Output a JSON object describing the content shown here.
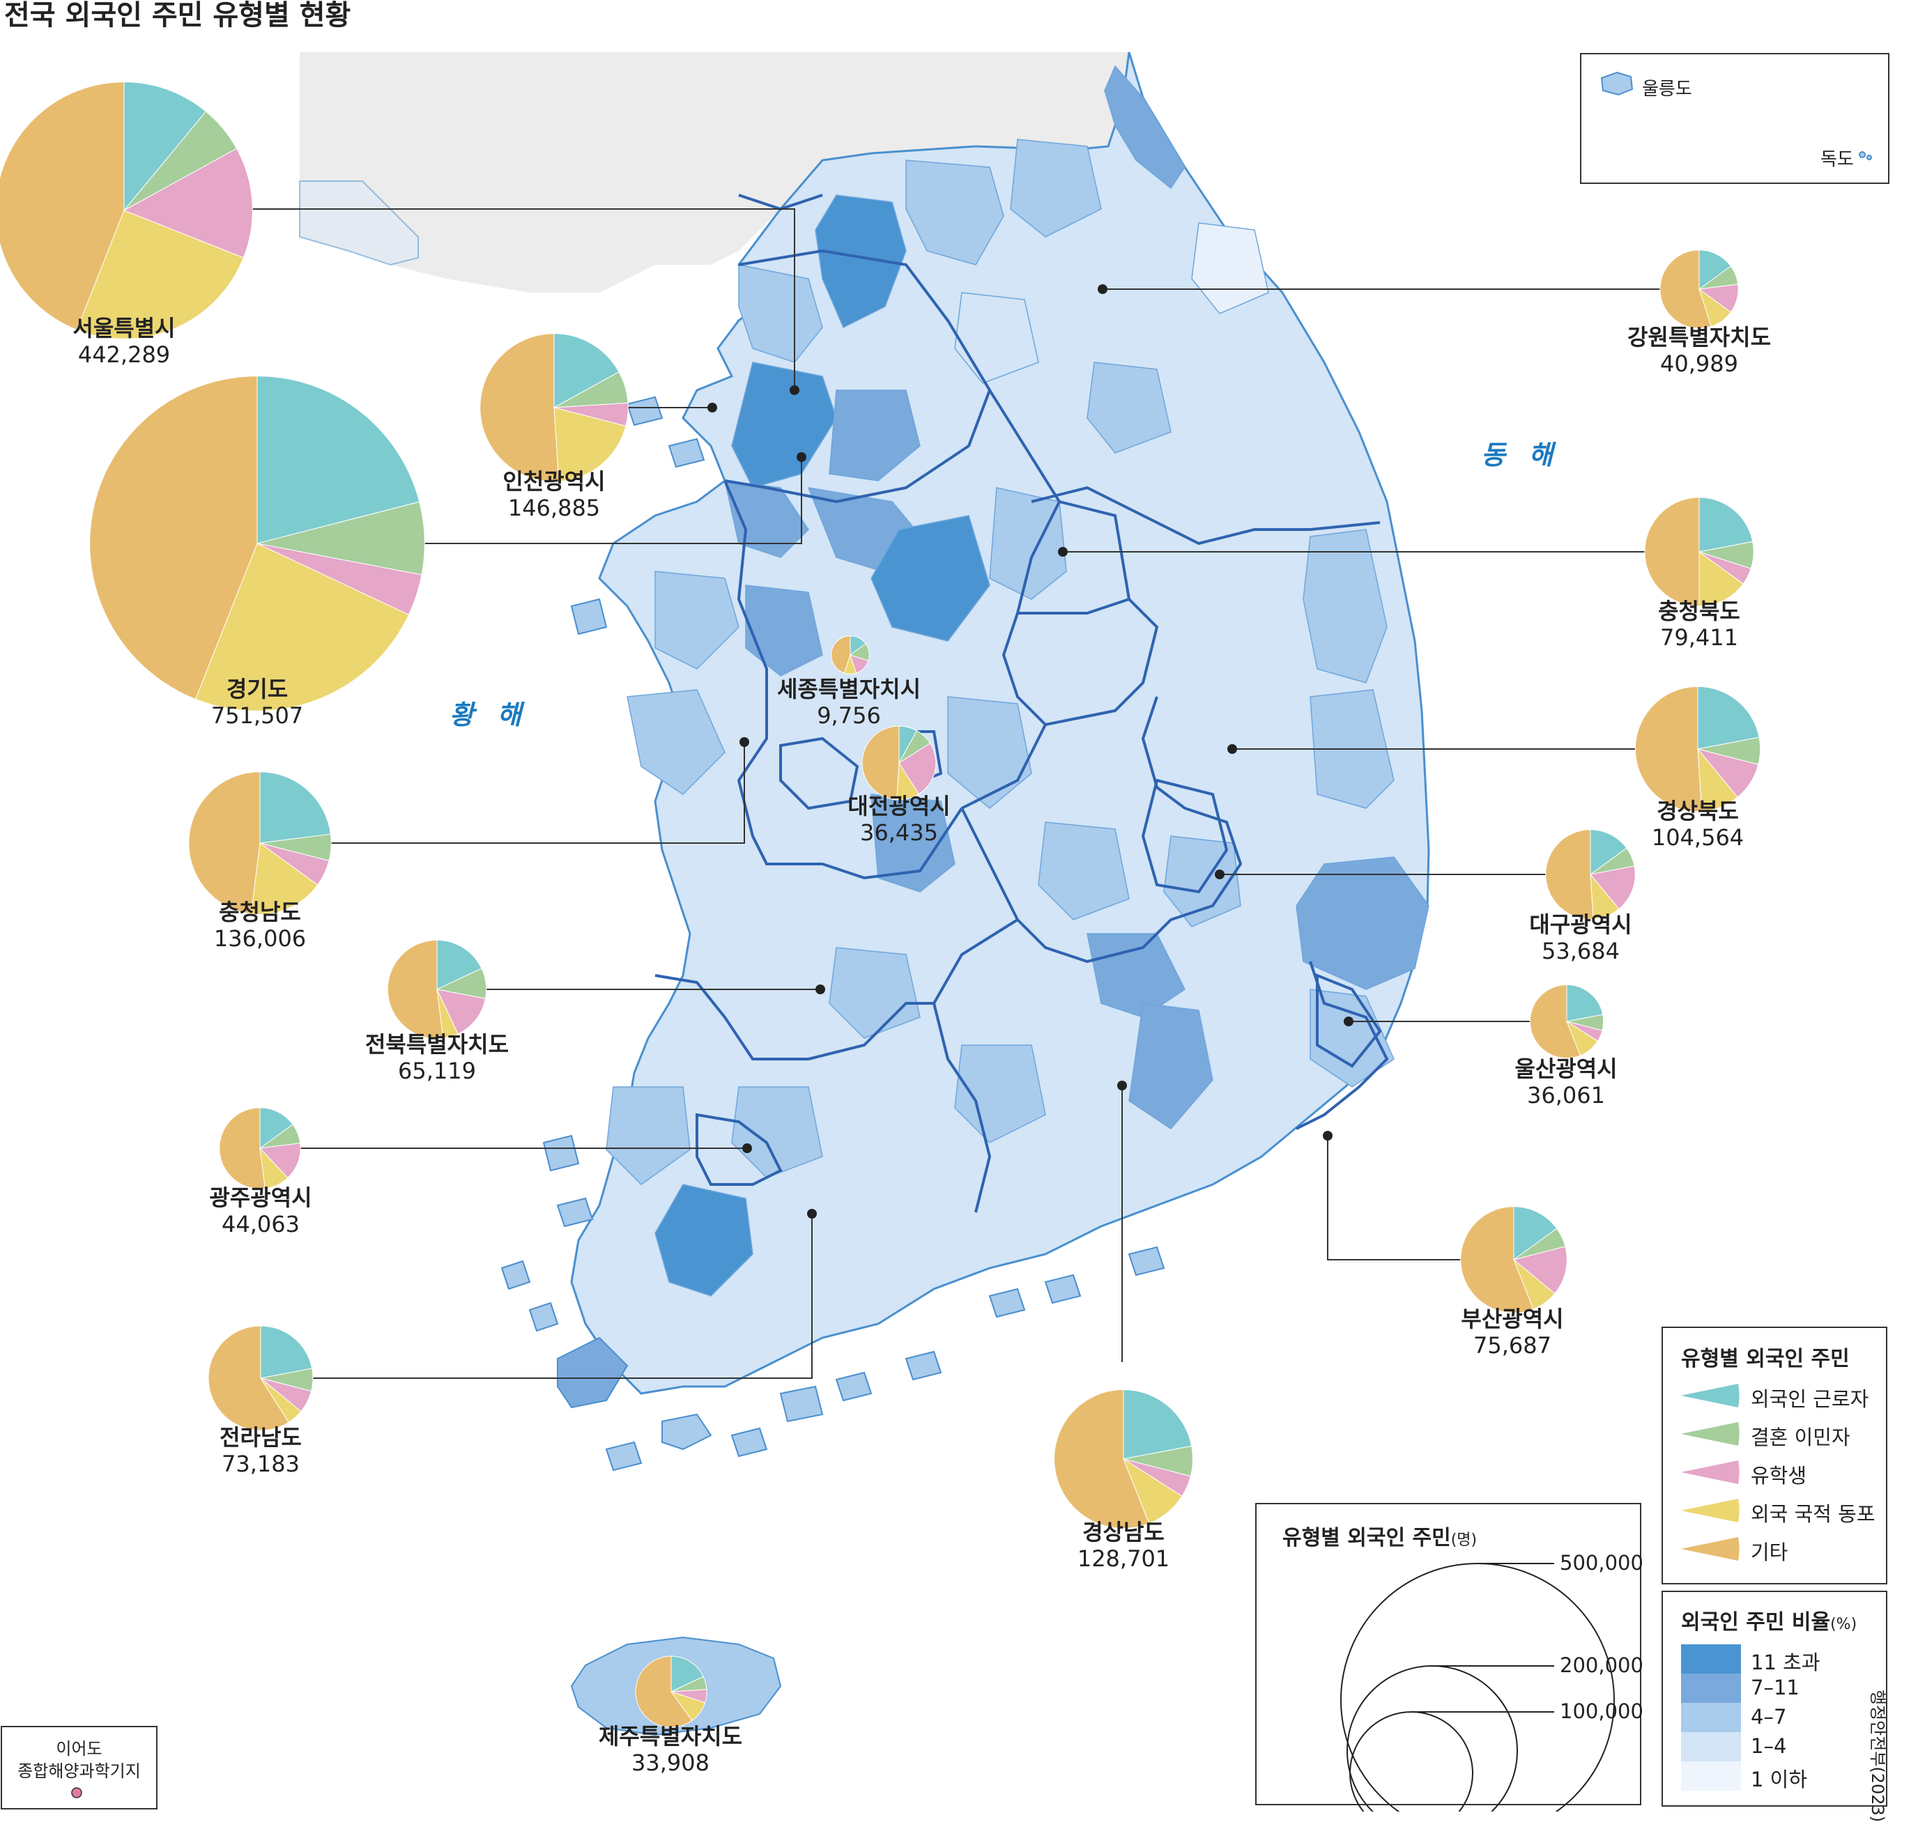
{
  "title": "전국 외국인 주민 유형별 현황",
  "seas": {
    "east": "동 해",
    "west": "황 해"
  },
  "inset": {
    "ulleung": "울릉도",
    "dokdo": "독도"
  },
  "ieodo": {
    "line1": "이어도",
    "line2": "종합해양과학기지"
  },
  "credit": "행정안전부(2023)",
  "legend_type": {
    "title": "유형별 외국인 주민",
    "items": [
      {
        "label": "외국인 근로자",
        "color": "#7ccbcf"
      },
      {
        "label": "결혼 이민자",
        "color": "#a5ce9b"
      },
      {
        "label": "유학생",
        "color": "#e5a6c8"
      },
      {
        "label": "외국 국적 동포",
        "color": "#ecd66f"
      },
      {
        "label": "기타",
        "color": "#e8bc6e"
      }
    ]
  },
  "legend_ratio": {
    "title": "외국인 주민 비율",
    "unit": "(%)",
    "items": [
      {
        "label": "11  초과",
        "color": "#4a94d2"
      },
      {
        "label": "7–11",
        "color": "#7aa9dc"
      },
      {
        "label": "4–7",
        "color": "#a9cbec"
      },
      {
        "label": "1–4",
        "color": "#d3e5f6"
      },
      {
        "label": "1  이하",
        "color": "#eef5fc"
      }
    ]
  },
  "legend_size": {
    "title": "유형별 외국인 주민",
    "unit": "(명)",
    "values": [
      {
        "label": "500,000",
        "value": 500000
      },
      {
        "label": "200,000",
        "value": 200000
      },
      {
        "label": "100,000",
        "value": 100000
      }
    ]
  },
  "regions": [
    {
      "name": "서울특별시",
      "value_label": "442,289",
      "total": 442289,
      "shares": [
        0.11,
        0.06,
        0.14,
        0.25,
        0.44
      ]
    },
    {
      "name": "인천광역시",
      "value_label": "146,885",
      "total": 146885,
      "shares": [
        0.17,
        0.07,
        0.05,
        0.2,
        0.51
      ]
    },
    {
      "name": "경기도",
      "value_label": "751,507",
      "total": 751507,
      "shares": [
        0.21,
        0.07,
        0.04,
        0.24,
        0.44
      ]
    },
    {
      "name": "강원특별자치도",
      "value_label": "40,989",
      "total": 40989,
      "shares": [
        0.15,
        0.08,
        0.12,
        0.1,
        0.55
      ]
    },
    {
      "name": "충청북도",
      "value_label": "79,411",
      "total": 79411,
      "shares": [
        0.22,
        0.08,
        0.05,
        0.15,
        0.5
      ]
    },
    {
      "name": "세종특별자치시",
      "value_label": "9,756",
      "total": 9756,
      "shares": [
        0.15,
        0.15,
        0.15,
        0.1,
        0.45
      ]
    },
    {
      "name": "대전광역시",
      "value_label": "36,435",
      "total": 36435,
      "shares": [
        0.08,
        0.08,
        0.25,
        0.1,
        0.49
      ]
    },
    {
      "name": "충청남도",
      "value_label": "136,006",
      "total": 136006,
      "shares": [
        0.23,
        0.06,
        0.06,
        0.17,
        0.48
      ]
    },
    {
      "name": "경상북도",
      "value_label": "104,564",
      "total": 104564,
      "shares": [
        0.22,
        0.07,
        0.1,
        0.1,
        0.51
      ]
    },
    {
      "name": "대구광역시",
      "value_label": "53,684",
      "total": 53684,
      "shares": [
        0.15,
        0.07,
        0.17,
        0.1,
        0.51
      ]
    },
    {
      "name": "전북특별자치도",
      "value_label": "65,119",
      "total": 65119,
      "shares": [
        0.18,
        0.1,
        0.15,
        0.05,
        0.52
      ]
    },
    {
      "name": "울산광역시",
      "value_label": "36,061",
      "total": 36061,
      "shares": [
        0.22,
        0.07,
        0.05,
        0.1,
        0.56
      ]
    },
    {
      "name": "광주광역시",
      "value_label": "44,063",
      "total": 44063,
      "shares": [
        0.15,
        0.08,
        0.15,
        0.1,
        0.52
      ]
    },
    {
      "name": "부산광역시",
      "value_label": "75,687",
      "total": 75687,
      "shares": [
        0.15,
        0.06,
        0.15,
        0.08,
        0.56
      ]
    },
    {
      "name": "전라남도",
      "value_label": "73,183",
      "total": 73183,
      "shares": [
        0.22,
        0.07,
        0.07,
        0.05,
        0.59
      ]
    },
    {
      "name": "경상남도",
      "value_label": "128,701",
      "total": 128701,
      "shares": [
        0.22,
        0.07,
        0.05,
        0.1,
        0.56
      ]
    },
    {
      "name": "제주특별자치도",
      "value_label": "33,908",
      "total": 33908,
      "shares": [
        0.18,
        0.06,
        0.06,
        0.1,
        0.6
      ]
    }
  ]
}
